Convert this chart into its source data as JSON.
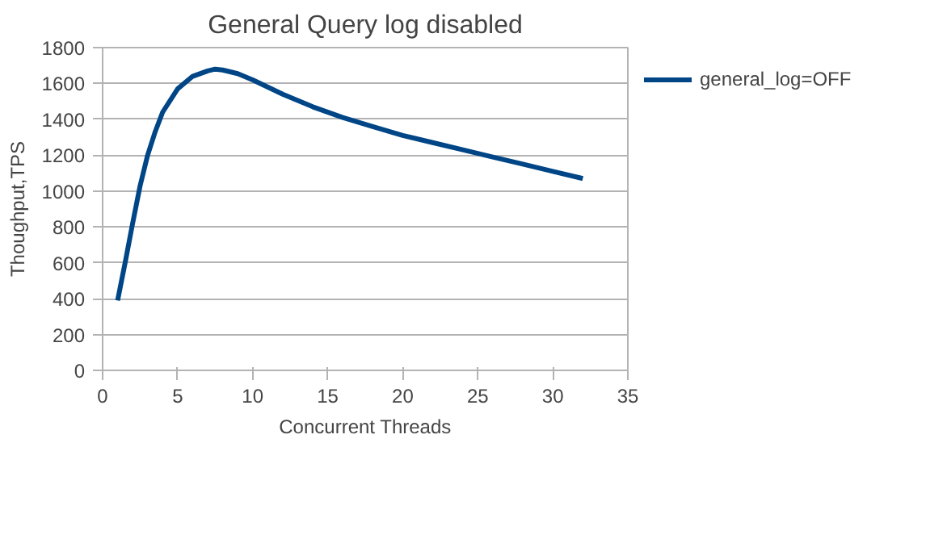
{
  "chart_data": {
    "type": "line",
    "title": "General Query log disabled",
    "xlabel": "Concurrent Threads",
    "ylabel": "Thoughput,TPS",
    "x": [
      1,
      1.5,
      2,
      2.5,
      3,
      3.5,
      4,
      5,
      6,
      7,
      7.5,
      8,
      9,
      10,
      12,
      14,
      16,
      18,
      20,
      22,
      24,
      26,
      28,
      30,
      32
    ],
    "series": [
      {
        "name": "general_log=OFF",
        "color": "#004586",
        "values": [
          390,
          600,
          820,
          1030,
          1200,
          1330,
          1440,
          1570,
          1640,
          1670,
          1680,
          1675,
          1655,
          1620,
          1540,
          1470,
          1410,
          1360,
          1310,
          1270,
          1230,
          1190,
          1150,
          1110,
          1070
        ]
      }
    ],
    "xlim": [
      0,
      35
    ],
    "xticks": [
      0,
      5,
      10,
      15,
      20,
      25,
      30,
      35
    ],
    "ylim": [
      0,
      1800
    ],
    "yticks": [
      0,
      200,
      400,
      600,
      800,
      1000,
      1200,
      1400,
      1600,
      1800
    ],
    "grid": "y",
    "legend": "right",
    "marker": "none",
    "line_style": "solid"
  }
}
